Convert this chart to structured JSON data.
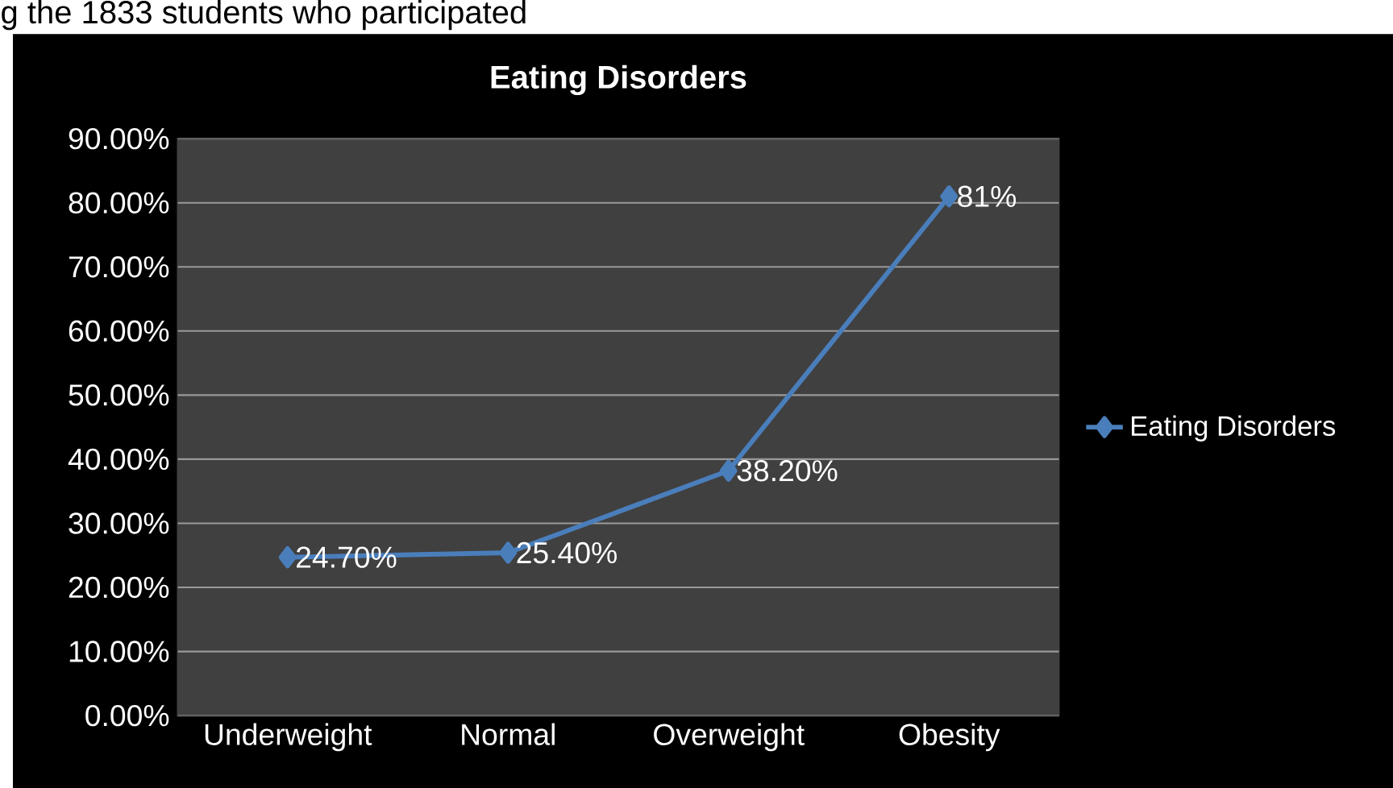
{
  "chart_data": {
    "type": "line",
    "title": "Eating Disorders",
    "annotations": [
      "g the 1833 students who participated"
    ],
    "categories": [
      "Underweight",
      "Normal",
      "Overweight",
      "Obesity"
    ],
    "series": [
      {
        "name": "Eating Disorders",
        "color": "#4a7ebb",
        "values": [
          24.7,
          25.4,
          38.2,
          81
        ],
        "value_labels": [
          "24.70%",
          "25.40%",
          "38.20%",
          "81%"
        ]
      }
    ],
    "ylim": [
      0,
      90
    ],
    "yticks": [
      {
        "value": 0,
        "label": "0.00%"
      },
      {
        "value": 10,
        "label": "10.00%"
      },
      {
        "value": 20,
        "label": "20.00%"
      },
      {
        "value": 30,
        "label": "30.00%"
      },
      {
        "value": 40,
        "label": "40.00%"
      },
      {
        "value": 50,
        "label": "50.00%"
      },
      {
        "value": 60,
        "label": "60.00%"
      },
      {
        "value": 70,
        "label": "70.00%"
      },
      {
        "value": 80,
        "label": "80.00%"
      },
      {
        "value": 90,
        "label": "90.00%"
      }
    ],
    "grid": "y",
    "legend": "right",
    "marker": "diamond",
    "line_style": "solid"
  }
}
